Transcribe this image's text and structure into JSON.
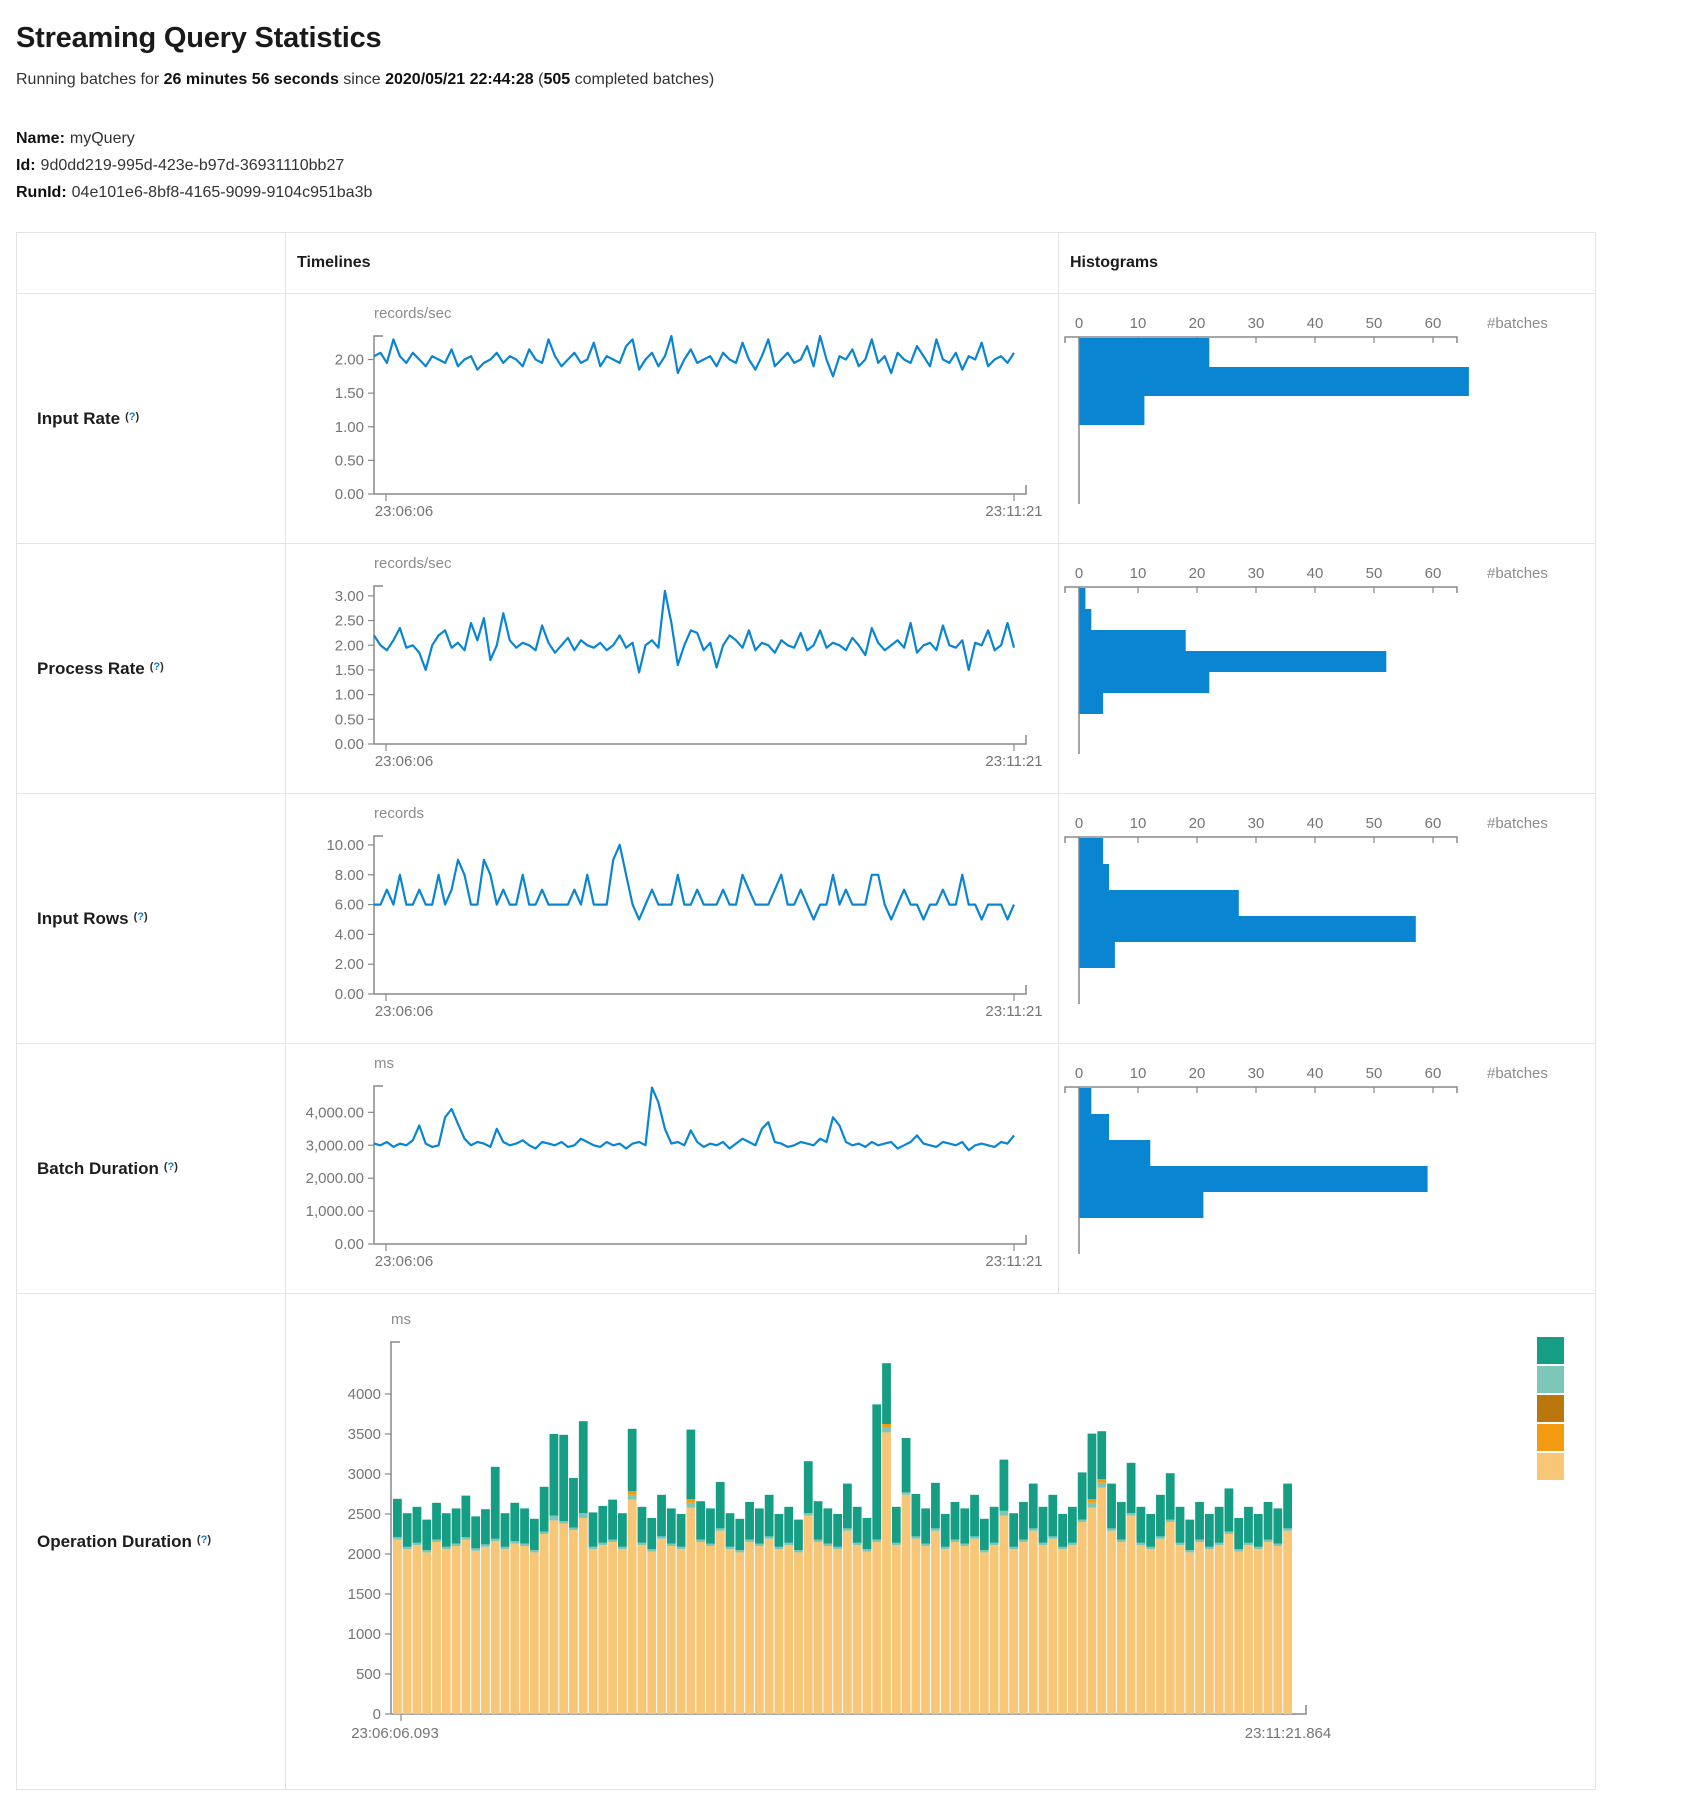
{
  "header": {
    "title": "Streaming Query Statistics",
    "running_prefix": "Running batches for ",
    "duration": "26 minutes 56 seconds",
    "since_text": " since ",
    "start_time": "2020/05/21 22:44:28",
    "paren_open": " (",
    "completed_count": "505",
    "completed_suffix": " completed batches)",
    "name_label": "Name:",
    "name_value": "myQuery",
    "id_label": "Id:",
    "id_value": "9d0dd219-995d-423e-b97d-36931110bb27",
    "runid_label": "RunId:",
    "runid_value": "04e101e6-8bf8-4165-9099-9104c951ba3b"
  },
  "table": {
    "headers": {
      "timelines": "Timelines",
      "histograms": "Histograms"
    },
    "help": {
      "open": "(",
      "q": "?",
      "close": ")"
    },
    "rows": [
      {
        "label": "Input Rate"
      },
      {
        "label": "Process Rate"
      },
      {
        "label": "Input Rows"
      },
      {
        "label": "Batch Duration"
      },
      {
        "label": "Operation Duration"
      }
    ]
  },
  "colors": {
    "line_blue": "#0a85d1",
    "hist_blue": "#0a85d1",
    "teal": "#169e85",
    "light_teal": "#7cc7b7",
    "brown": "#b9770e",
    "orange": "#f39c12",
    "tan": "#f7c677",
    "axis_gray": "#888888"
  },
  "chart_data": [
    {
      "id": "input-rate-timeline",
      "type": "line",
      "title": "Input Rate timeline",
      "ylabel": "records/sec",
      "x_start": "23:06:06",
      "x_end": "23:11:21",
      "y_ticks": [
        0,
        0.5,
        1,
        1.5,
        2
      ],
      "y_tick_labels": [
        "0.00",
        "0.50",
        "1.00",
        "1.50",
        "2.00"
      ],
      "ylim": [
        0,
        2.35
      ],
      "color": "#0a85d1",
      "values": [
        2.05,
        2.1,
        1.95,
        2.3,
        2.05,
        1.95,
        2.1,
        2.0,
        1.9,
        2.05,
        2.0,
        1.95,
        2.15,
        1.9,
        2.0,
        2.05,
        1.85,
        1.95,
        2.0,
        2.1,
        1.95,
        2.05,
        2.0,
        1.9,
        2.15,
        2.0,
        1.95,
        2.3,
        2.05,
        1.9,
        2.0,
        2.1,
        1.95,
        2.0,
        2.25,
        1.9,
        2.05,
        2.0,
        1.95,
        2.2,
        2.3,
        1.85,
        2.0,
        2.1,
        1.9,
        2.05,
        2.35,
        1.8,
        2.0,
        2.15,
        1.95,
        2.0,
        2.05,
        1.9,
        2.1,
        2.0,
        1.95,
        2.25,
        2.0,
        1.85,
        2.05,
        2.3,
        1.9,
        2.0,
        2.1,
        1.95,
        2.0,
        2.2,
        1.9,
        2.35,
        2.0,
        1.75,
        2.05,
        2.0,
        2.15,
        1.9,
        2.0,
        2.3,
        1.95,
        2.05,
        1.8,
        2.1,
        2.0,
        1.95,
        2.2,
        2.05,
        1.9,
        2.3,
        2.0,
        1.95,
        2.1,
        1.85,
        2.05,
        2.0,
        2.25,
        1.9,
        2.0,
        2.05,
        1.95,
        2.1
      ]
    },
    {
      "id": "input-rate-histogram",
      "type": "bar",
      "title": "Input Rate histogram",
      "xlabel": "#batches",
      "x_ticks": [
        0,
        10,
        20,
        30,
        40,
        50,
        60
      ],
      "xlim": [
        0,
        68
      ],
      "values": [
        22,
        66,
        11
      ],
      "color": "#0a85d1"
    },
    {
      "id": "process-rate-timeline",
      "type": "line",
      "title": "Process Rate timeline",
      "ylabel": "records/sec",
      "x_start": "23:06:06",
      "x_end": "23:11:21",
      "y_ticks": [
        0,
        0.5,
        1,
        1.5,
        2,
        2.5,
        3
      ],
      "y_tick_labels": [
        "0.00",
        "0.50",
        "1.00",
        "1.50",
        "2.00",
        "2.50",
        "3.00"
      ],
      "ylim": [
        0,
        3.2
      ],
      "color": "#0a85d1",
      "values": [
        2.2,
        2.0,
        1.9,
        2.1,
        2.35,
        1.95,
        2.0,
        1.85,
        1.5,
        2.0,
        2.2,
        2.3,
        1.95,
        2.05,
        1.9,
        2.45,
        2.1,
        2.55,
        1.7,
        2.0,
        2.65,
        2.1,
        1.95,
        2.05,
        2.0,
        1.9,
        2.4,
        2.05,
        1.85,
        2.0,
        2.15,
        1.9,
        2.1,
        2.0,
        1.95,
        2.05,
        1.9,
        2.0,
        2.2,
        1.95,
        2.05,
        1.45,
        2.0,
        2.1,
        1.95,
        3.1,
        2.45,
        1.6,
        2.0,
        2.3,
        2.25,
        1.9,
        2.05,
        1.55,
        2.0,
        2.2,
        2.1,
        1.95,
        2.3,
        1.9,
        2.05,
        2.0,
        1.85,
        2.1,
        2.0,
        1.95,
        2.25,
        1.9,
        2.0,
        2.3,
        1.95,
        2.05,
        2.0,
        1.9,
        2.15,
        2.0,
        1.8,
        2.35,
        2.05,
        1.9,
        2.0,
        2.1,
        1.95,
        2.45,
        1.85,
        2.0,
        2.05,
        1.9,
        2.4,
        2.0,
        1.95,
        2.1,
        1.5,
        2.05,
        2.0,
        2.3,
        1.9,
        2.0,
        2.45,
        1.95
      ]
    },
    {
      "id": "process-rate-histogram",
      "type": "bar",
      "title": "Process Rate histogram",
      "xlabel": "#batches",
      "x_ticks": [
        0,
        10,
        20,
        30,
        40,
        50,
        60
      ],
      "xlim": [
        0,
        68
      ],
      "values": [
        1,
        2,
        18,
        52,
        22,
        4
      ],
      "color": "#0a85d1"
    },
    {
      "id": "input-rows-timeline",
      "type": "line",
      "title": "Input Rows timeline",
      "ylabel": "records",
      "x_start": "23:06:06",
      "x_end": "23:11:21",
      "y_ticks": [
        0,
        2,
        4,
        6,
        8,
        10
      ],
      "y_tick_labels": [
        "0.00",
        "2.00",
        "4.00",
        "6.00",
        "8.00",
        "10.00"
      ],
      "ylim": [
        0,
        10.6
      ],
      "color": "#0a85d1",
      "values": [
        6,
        6,
        7,
        6,
        8,
        6,
        6,
        7,
        6,
        6,
        8,
        6,
        7,
        9,
        8,
        6,
        6,
        9,
        8,
        6,
        7,
        6,
        6,
        8,
        6,
        6,
        7,
        6,
        6,
        6,
        6,
        7,
        6,
        8,
        6,
        6,
        6,
        9,
        10,
        8,
        6,
        5,
        6,
        7,
        6,
        6,
        6,
        8,
        6,
        6,
        7,
        6,
        6,
        6,
        7,
        6,
        6,
        8,
        7,
        6,
        6,
        6,
        7,
        8,
        6,
        6,
        7,
        6,
        5,
        6,
        6,
        8,
        6,
        7,
        6,
        6,
        6,
        8,
        8,
        6,
        5,
        6,
        7,
        6,
        6,
        5,
        6,
        6,
        7,
        6,
        6,
        8,
        6,
        6,
        5,
        6,
        6,
        6,
        5,
        6
      ]
    },
    {
      "id": "input-rows-histogram",
      "type": "bar",
      "title": "Input Rows histogram",
      "xlabel": "#batches",
      "x_ticks": [
        0,
        10,
        20,
        30,
        40,
        50,
        60
      ],
      "xlim": [
        0,
        68
      ],
      "values": [
        4,
        5,
        27,
        57,
        6
      ],
      "color": "#0a85d1"
    },
    {
      "id": "batch-duration-timeline",
      "type": "line",
      "title": "Batch Duration timeline",
      "ylabel": "ms",
      "x_start": "23:06:06",
      "x_end": "23:11:21",
      "y_ticks": [
        0,
        1000,
        2000,
        3000,
        4000
      ],
      "y_tick_labels": [
        "0.00",
        "1,000.00",
        "2,000.00",
        "3,000.00",
        "4,000.00"
      ],
      "ylim": [
        0,
        4800
      ],
      "color": "#0a85d1",
      "values": [
        3050,
        3000,
        3100,
        2950,
        3050,
        3000,
        3150,
        3600,
        3050,
        2950,
        3000,
        3850,
        4100,
        3650,
        3200,
        3000,
        3100,
        3050,
        2950,
        3500,
        3100,
        3000,
        3050,
        3150,
        3000,
        2900,
        3100,
        3050,
        3000,
        3100,
        2950,
        3000,
        3200,
        3100,
        3000,
        2950,
        3100,
        3000,
        3050,
        2900,
        3050,
        3100,
        3000,
        4750,
        4300,
        3500,
        3050,
        3100,
        3000,
        3450,
        3100,
        2950,
        3050,
        3000,
        3100,
        2900,
        3050,
        3200,
        3100,
        3000,
        3500,
        3700,
        3100,
        3050,
        2950,
        3000,
        3100,
        3050,
        3000,
        3200,
        3100,
        3850,
        3600,
        3100,
        3000,
        3050,
        2950,
        3100,
        3000,
        3050,
        3100,
        2900,
        3000,
        3100,
        3300,
        3050,
        3000,
        2950,
        3100,
        3050,
        3000,
        3100,
        2850,
        3000,
        3050,
        3000,
        2950,
        3100,
        3050,
        3300
      ]
    },
    {
      "id": "batch-duration-histogram",
      "type": "bar",
      "title": "Batch Duration histogram",
      "xlabel": "#batches",
      "x_ticks": [
        0,
        10,
        20,
        30,
        40,
        50,
        60
      ],
      "xlim": [
        0,
        68
      ],
      "values": [
        2,
        5,
        12,
        59,
        21
      ],
      "color": "#0a85d1"
    },
    {
      "id": "operation-duration",
      "type": "stacked-bar",
      "title": "Operation Duration",
      "ylabel": "ms",
      "x_start": "23:06:06.093",
      "x_end": "23:11:21.864",
      "y_ticks": [
        0,
        500,
        1000,
        1500,
        2000,
        2500,
        3000,
        3500,
        4000
      ],
      "y_tick_labels": [
        "0",
        "500",
        "1000",
        "1500",
        "2000",
        "2500",
        "3000",
        "3500",
        "4000"
      ],
      "ylim": [
        0,
        4400
      ],
      "legend_position": "right",
      "legend_colors": [
        "#169e85",
        "#7cc7b7",
        "#b9770e",
        "#f39c12",
        "#f7c677"
      ],
      "series": [
        {
          "name": "segment-tan",
          "color": "#f7c677",
          "values": [
            2180,
            2060,
            2110,
            2020,
            2150,
            2060,
            2100,
            2180,
            2040,
            2090,
            2160,
            2060,
            2130,
            2100,
            2020,
            2250,
            2420,
            2380,
            2300,
            2450,
            2060,
            2110,
            2150,
            2060,
            2680,
            2110,
            2030,
            2190,
            2100,
            2060,
            2580,
            2150,
            2100,
            2290,
            2060,
            2020,
            2150,
            2100,
            2190,
            2060,
            2110,
            2020,
            2480,
            2150,
            2100,
            2060,
            2290,
            2110,
            2030,
            2150,
            3520,
            2110,
            2740,
            2190,
            2100,
            2290,
            2060,
            2150,
            2100,
            2190,
            2020,
            2110,
            2480,
            2060,
            2150,
            2290,
            2110,
            2190,
            2060,
            2110,
            2400,
            2580,
            2830,
            2290,
            2150,
            2480,
            2110,
            2060,
            2190,
            2400,
            2110,
            2020,
            2150,
            2060,
            2110,
            2250,
            2030,
            2110,
            2060,
            2150,
            2100,
            2290
          ]
        },
        {
          "name": "segment-light-teal",
          "color": "#7cc7b7",
          "values": [
            30,
            30,
            30,
            30,
            30,
            30,
            30,
            30,
            30,
            30,
            30,
            30,
            30,
            30,
            30,
            30,
            60,
            30,
            30,
            60,
            30,
            30,
            30,
            30,
            60,
            30,
            30,
            30,
            30,
            30,
            60,
            30,
            30,
            30,
            30,
            30,
            30,
            30,
            30,
            30,
            30,
            30,
            30,
            30,
            30,
            30,
            30,
            30,
            30,
            30,
            60,
            30,
            30,
            30,
            30,
            30,
            30,
            30,
            30,
            30,
            30,
            30,
            60,
            30,
            30,
            30,
            30,
            30,
            30,
            30,
            30,
            60,
            60,
            30,
            30,
            30,
            30,
            30,
            30,
            30,
            30,
            30,
            30,
            30,
            30,
            30,
            30,
            30,
            30,
            30,
            30,
            30
          ]
        },
        {
          "name": "segment-orange",
          "color": "#f39c12",
          "values": [
            0,
            0,
            0,
            0,
            0,
            0,
            0,
            0,
            0,
            0,
            0,
            0,
            0,
            0,
            0,
            0,
            0,
            0,
            0,
            0,
            0,
            0,
            0,
            0,
            45,
            0,
            0,
            0,
            0,
            0,
            45,
            0,
            0,
            0,
            0,
            0,
            0,
            0,
            0,
            0,
            0,
            0,
            0,
            0,
            0,
            0,
            0,
            0,
            0,
            0,
            45,
            0,
            0,
            0,
            0,
            0,
            0,
            0,
            0,
            0,
            0,
            0,
            0,
            0,
            0,
            0,
            0,
            0,
            0,
            0,
            0,
            45,
            45,
            0,
            0,
            0,
            0,
            0,
            0,
            0,
            0,
            0,
            0,
            0,
            0,
            0,
            0,
            0,
            0,
            0,
            0,
            0
          ]
        },
        {
          "name": "segment-teal",
          "color": "#169e85",
          "values": [
            480,
            420,
            450,
            380,
            460,
            420,
            440,
            520,
            400,
            440,
            900,
            420,
            480,
            440,
            390,
            560,
            1020,
            1080,
            620,
            1150,
            430,
            460,
            500,
            420,
            780,
            450,
            390,
            520,
            440,
            410,
            870,
            480,
            440,
            580,
            420,
            390,
            470,
            440,
            520,
            410,
            450,
            380,
            650,
            480,
            440,
            410,
            560,
            450,
            390,
            1690,
            760,
            450,
            680,
            530,
            440,
            570,
            410,
            470,
            440,
            520,
            390,
            450,
            640,
            420,
            470,
            560,
            450,
            520,
            410,
            450,
            590,
            820,
            600,
            560,
            470,
            630,
            450,
            410,
            520,
            580,
            450,
            380,
            470,
            410,
            450,
            540,
            390,
            450,
            410,
            470,
            440,
            560
          ]
        }
      ]
    }
  ]
}
